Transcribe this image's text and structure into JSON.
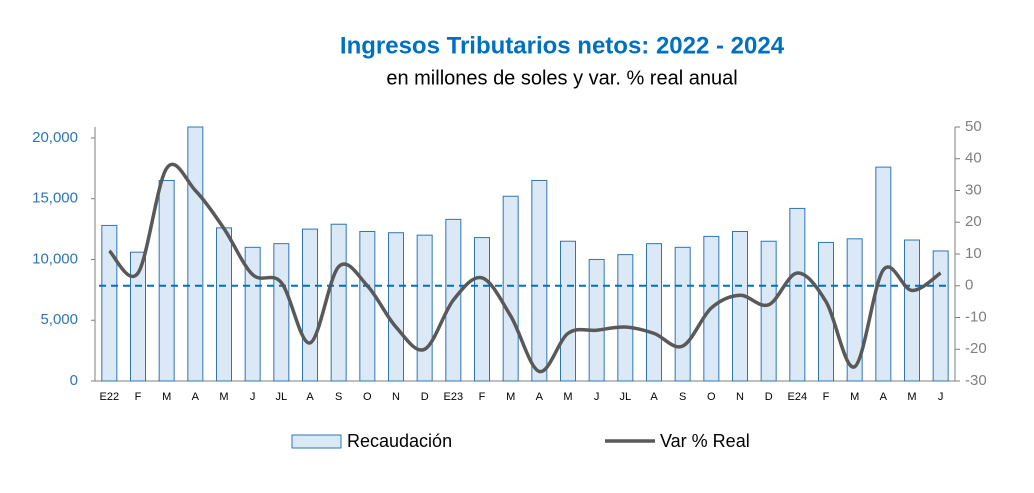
{
  "chart_data": {
    "type": "bar_line",
    "title": "Ingresos Tributarios netos: 2022 - 2024",
    "subtitle": "en millones de soles y var. % real anual",
    "categories": [
      "E22",
      "F",
      "M",
      "A",
      "M",
      "J",
      "JL",
      "A",
      "S",
      "O",
      "N",
      "D",
      "E23",
      "F",
      "M",
      "A",
      "M",
      "J",
      "JL",
      "A",
      "S",
      "O",
      "N",
      "D",
      "E24",
      "F",
      "M",
      "A",
      "M",
      "J"
    ],
    "series": [
      {
        "name": "Recaudación",
        "type": "bar",
        "color": "#dbe9f7",
        "edge_color": "#2e75b6",
        "values": [
          12800,
          10600,
          16500,
          20900,
          12600,
          11000,
          11300,
          12500,
          12900,
          12300,
          12200,
          12000,
          13300,
          11800,
          15200,
          16500,
          11500,
          10000,
          10400,
          11300,
          11000,
          11900,
          12300,
          11500,
          14200,
          11400,
          11700,
          17600,
          11600,
          10700
        ]
      },
      {
        "name": "Var % Real",
        "type": "line",
        "axis": "y2",
        "color": "#595959",
        "values": [
          11,
          4,
          37,
          30,
          18,
          3.5,
          1,
          -18,
          6,
          0,
          -13,
          -20,
          -4.5,
          2.5,
          -9.5,
          -27,
          -15,
          -14,
          -13,
          -15,
          -19,
          -7,
          -3,
          -6,
          4,
          -5,
          -25.5,
          5,
          -1.5,
          4
        ]
      }
    ],
    "ylim": [
      0,
      20900
    ],
    "yticks": [
      0,
      {
        "value": 5000,
        "label": "5,000"
      },
      {
        "value": 10000,
        "label": "10,000"
      },
      {
        "value": 15000,
        "label": "15,000"
      },
      {
        "value": 20000,
        "label": "20,000"
      }
    ],
    "y2lim": [
      -30,
      50
    ],
    "y2ticks": [
      -30,
      -20,
      -10,
      0,
      10,
      20,
      30,
      40,
      50
    ],
    "y2_reference": 0,
    "reference_color": "#0070c0"
  }
}
